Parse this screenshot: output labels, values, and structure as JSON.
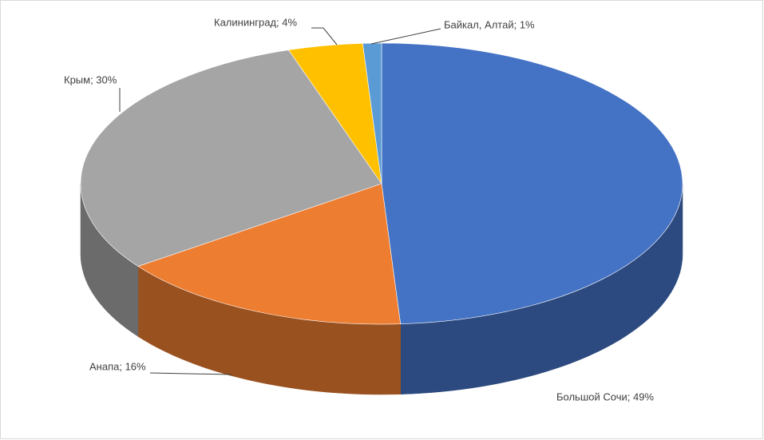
{
  "chart_data": {
    "type": "pie",
    "values": [
      49,
      16,
      30,
      4,
      1
    ],
    "value_labels": [
      "Большой Сочи; 49%",
      "Анапа; 16%",
      "Крым; 30%",
      "Калининград; 4%",
      "Байкал, Алтай; 1%"
    ],
    "colors": [
      "#4472c4",
      "#ed7d31",
      "#a5a5a5",
      "#ffc000",
      "#5b9bd5"
    ]
  }
}
